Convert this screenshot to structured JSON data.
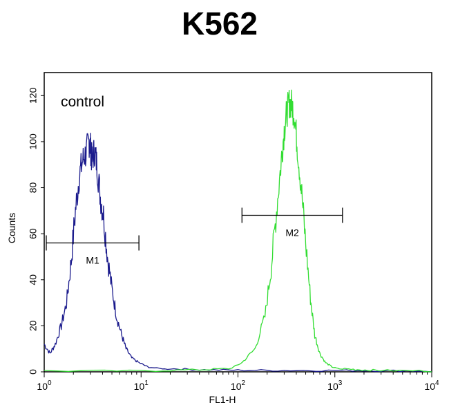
{
  "chart_data": {
    "type": "line",
    "title": "K562",
    "xlabel": "FL1-H",
    "ylabel": "Counts",
    "annotation": "control",
    "x_scale": "log",
    "xlim": [
      1,
      10000
    ],
    "ylim": [
      0,
      130
    ],
    "x_ticks": [
      {
        "base": "10",
        "exp": "0",
        "value": 1
      },
      {
        "base": "10",
        "exp": "1",
        "value": 10
      },
      {
        "base": "10",
        "exp": "2",
        "value": 100
      },
      {
        "base": "10",
        "exp": "3",
        "value": 1000
      },
      {
        "base": "10",
        "exp": "4",
        "value": 10000
      }
    ],
    "y_ticks": [
      0,
      20,
      40,
      60,
      80,
      100,
      120
    ],
    "grid": false,
    "legend": "none",
    "series": [
      {
        "color": "#1a1a8c",
        "x": [
          1,
          1.15,
          1.3,
          1.5,
          1.7,
          1.9,
          2.1,
          2.3,
          2.5,
          2.7,
          2.9,
          3.0,
          3.1,
          3.3,
          3.5,
          3.8,
          4.1,
          4.5,
          5.0,
          5.6,
          6.3,
          7.0,
          8.0,
          9.5,
          12,
          20,
          40,
          100,
          300,
          1000,
          3000,
          10000
        ],
        "y": [
          12,
          8,
          12,
          20,
          30,
          48,
          70,
          85,
          92,
          95,
          100,
          98,
          92,
          96,
          90,
          76,
          68,
          50,
          36,
          24,
          16,
          10,
          6,
          4,
          2,
          1,
          0.5,
          0.3,
          0.2,
          0.2,
          0.1,
          0
        ]
      },
      {
        "color": "#33dd33",
        "x": [
          1,
          10,
          40,
          80,
          110,
          150,
          190,
          220,
          250,
          280,
          300,
          320,
          340,
          360,
          380,
          410,
          450,
          500,
          560,
          620,
          700,
          800,
          950,
          1200,
          1800,
          3000,
          10000
        ],
        "y": [
          0,
          0,
          0.5,
          1,
          4,
          10,
          24,
          45,
          70,
          92,
          105,
          113,
          117,
          116,
          112,
          98,
          80,
          56,
          32,
          16,
          8,
          4,
          2,
          1,
          0.5,
          0.2,
          0
        ]
      }
    ],
    "markers": [
      {
        "label": "M1",
        "x_start": 1.05,
        "x_end": 9.5,
        "y": 56
      },
      {
        "label": "M2",
        "x_start": 110,
        "x_end": 1200,
        "y": 68
      }
    ]
  }
}
